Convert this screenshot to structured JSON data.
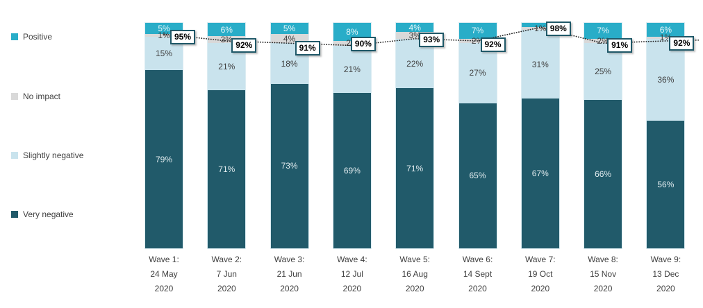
{
  "chart_data": {
    "type": "bar",
    "subtype": "stacked-100-percent-with-dotted-line",
    "title": "",
    "xlabel": "",
    "ylabel": "",
    "ylim": [
      0,
      100
    ],
    "grid": false,
    "legend_position": "left",
    "categories": [
      [
        "Wave 1:",
        "24 May",
        "2020"
      ],
      [
        "Wave 2:",
        "7 Jun",
        "2020"
      ],
      [
        "Wave 3:",
        "21 Jun",
        "2020"
      ],
      [
        "Wave 4:",
        "12 Jul",
        "2020"
      ],
      [
        "Wave 5:",
        "16 Aug",
        "2020"
      ],
      [
        "Wave 6:",
        "14 Sept",
        "2020"
      ],
      [
        "Wave 7:",
        "19 Oct",
        "2020"
      ],
      [
        "Wave 8:",
        "15 Nov",
        "2020"
      ],
      [
        "Wave 9:",
        "13 Dec",
        "2020"
      ]
    ],
    "series": [
      {
        "name": "Positive",
        "color": "#29adc8",
        "label_color": "#eaf7fa",
        "values": [
          5,
          6,
          5,
          8,
          4,
          7,
          2,
          7,
          6
        ],
        "labels": [
          "5%",
          "6%",
          "5%",
          "8%",
          "4%",
          "7%",
          "",
          "7%",
          "6%"
        ]
      },
      {
        "name": "No impact",
        "color": "#d9d9d9",
        "label_color": "#404040",
        "values": [
          1,
          3,
          4,
          2,
          3,
          2,
          1,
          2,
          1
        ],
        "labels": [
          "1%",
          "3%",
          "4%",
          "2%",
          "3%",
          "2%",
          "1%",
          "2%",
          "1%"
        ]
      },
      {
        "name": "Slightly negative",
        "color": "#c9e3ed",
        "label_color": "#404040",
        "values": [
          15,
          21,
          18,
          21,
          22,
          27,
          31,
          25,
          36
        ],
        "labels": [
          "15%",
          "21%",
          "18%",
          "21%",
          "22%",
          "27%",
          "31%",
          "25%",
          "36%"
        ]
      },
      {
        "name": "Very negative",
        "color": "#215a6a",
        "label_color": "#e2ecef",
        "values": [
          79,
          71,
          73,
          69,
          71,
          65,
          67,
          66,
          56
        ],
        "labels": [
          "79%",
          "71%",
          "73%",
          "69%",
          "71%",
          "65%",
          "67%",
          "66%",
          "56%"
        ]
      }
    ],
    "line": {
      "style": "dotted",
      "color": "#262626",
      "values": [
        95,
        92,
        91,
        90,
        93,
        92,
        98,
        91,
        92
      ],
      "labels": [
        "95%",
        "92%",
        "91%",
        "90%",
        "93%",
        "92%",
        "98%",
        "91%",
        "92%"
      ]
    }
  },
  "legend": {
    "items": [
      {
        "label": "Positive",
        "color": "#29adc8"
      },
      {
        "label": "No impact",
        "color": "#d9d9d9"
      },
      {
        "label": "Slightly negative",
        "color": "#c9e3ed"
      },
      {
        "label": "Very negative",
        "color": "#215a6a"
      }
    ]
  }
}
